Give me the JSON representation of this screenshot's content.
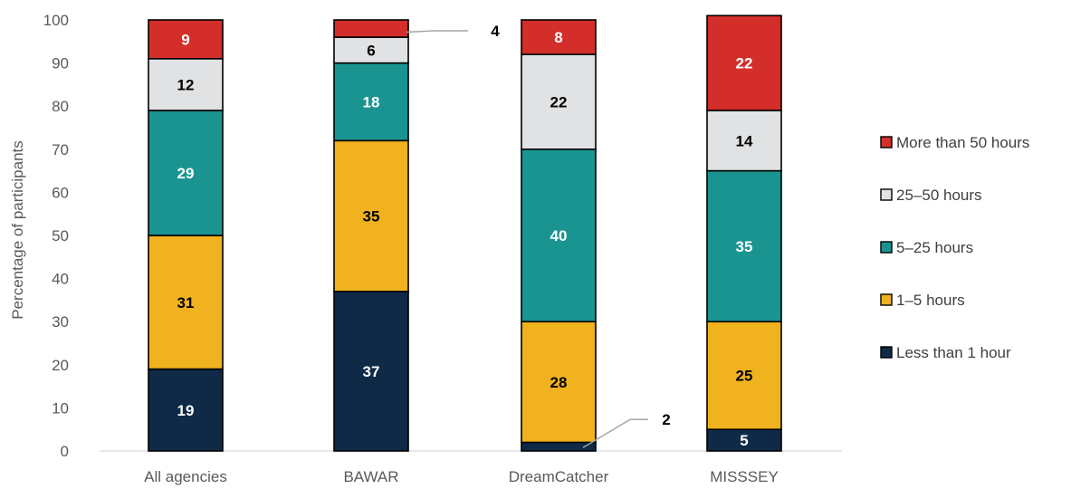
{
  "chart_data": {
    "type": "bar",
    "stacked": true,
    "title": "",
    "xlabel": "",
    "ylabel": "Percentage  of participants",
    "ylim": [
      0,
      100
    ],
    "yticks": [
      0,
      10,
      20,
      30,
      40,
      50,
      60,
      70,
      80,
      90,
      100
    ],
    "grid": false,
    "legend_position": "right",
    "categories": [
      "All agencies",
      "BAWAR",
      "DreamCatcher",
      "MISSSEY"
    ],
    "series": [
      {
        "name": "Less than 1 hour",
        "color": "#0f2a47",
        "label_color": "#ffffff",
        "values": [
          19,
          37,
          2,
          5
        ]
      },
      {
        "name": "1–5 hours",
        "color": "#f0b21e",
        "label_color": "#000000",
        "values": [
          31,
          35,
          28,
          25
        ]
      },
      {
        "name": "5–25 hours",
        "color": "#1a9491",
        "label_color": "#ffffff",
        "values": [
          29,
          18,
          40,
          35
        ]
      },
      {
        "name": "25–50 hours",
        "color": "#e0e2e3",
        "label_color": "#000000",
        "values": [
          12,
          6,
          22,
          14
        ]
      },
      {
        "name": "More than 50 hours",
        "color": "#d42e2a",
        "label_color": "#ffffff",
        "values": [
          9,
          4,
          8,
          22
        ]
      }
    ],
    "callouts": [
      {
        "category": "BAWAR",
        "series": "More than 50 hours",
        "text": "4"
      },
      {
        "category": "DreamCatcher",
        "series": "Less than 1 hour",
        "text": "2"
      }
    ]
  }
}
